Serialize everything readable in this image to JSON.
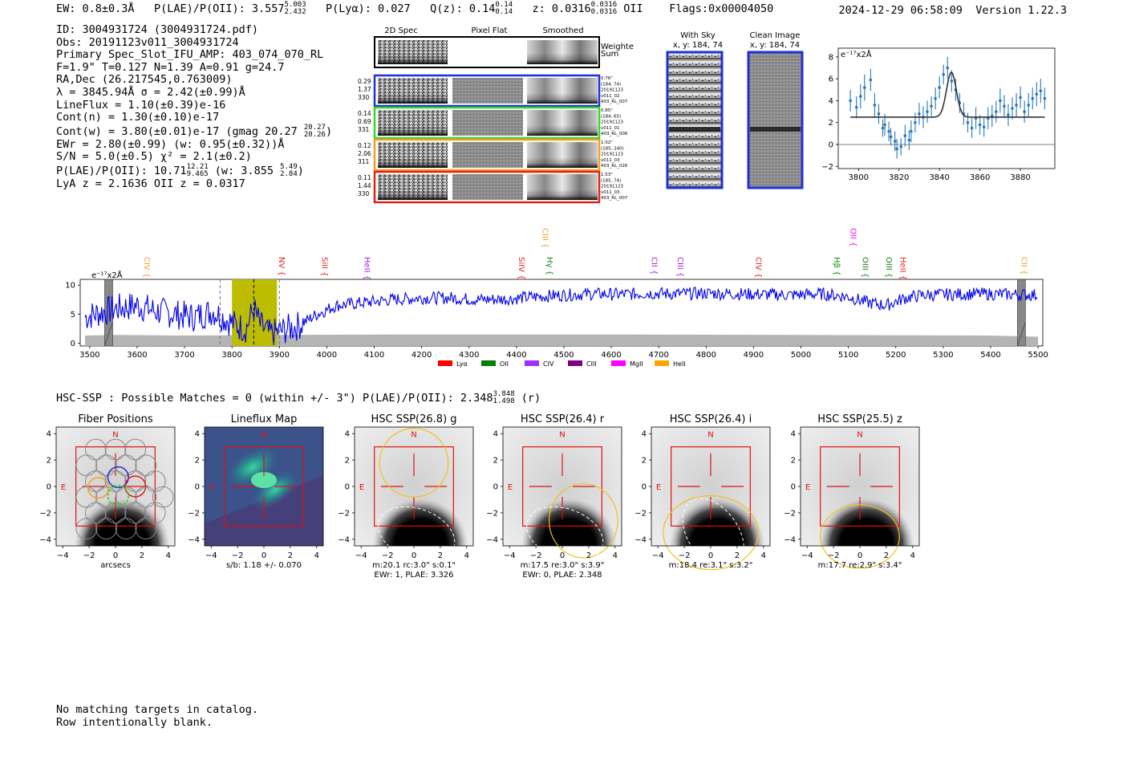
{
  "header": {
    "ew": "EW: 0.8±0.3Å",
    "plae_label": "P(LAE)/P(OII):",
    "plae_value": "3.557",
    "plae_hi": "5.003",
    "plae_lo": "2.432",
    "plya": "P(Lyα): 0.027",
    "qz_label": "Q(z):",
    "qz_value": "0.14",
    "qz_hi": "0.14",
    "qz_lo": "0.14",
    "z_label": "z:",
    "z_value": "0.0316",
    "z_hi": "0.0316",
    "z_lo": "0.0316",
    "z_line": "OII",
    "flags": "Flags:0x00004050",
    "timestamp": "2024-12-29 06:58:09",
    "version": "Version 1.22.3"
  },
  "info": {
    "id": "ID: 3004931724 (3004931724.pdf)",
    "obs": "Obs: 20191123v011_3004931724",
    "primary": "Primary Spec_Slot_IFU_AMP: 403_074_070_RL",
    "fit": "F=1.9\"  T=0.127  N=1.39  A=0.91  g=24.7",
    "radec": "RA,Dec (26.217545,0.763009)",
    "lambda": "λ = 3845.94Å  σ = 2.42(±0.99)Å",
    "lineflux": "LineFlux = 1.10(±0.39)e-16",
    "contn": "Cont(n) = 1.30(±0.10)e-17",
    "contw": "Cont(w) = 3.80(±0.01)e-17 (gmag 20.27",
    "contw_hi": "20.27",
    "contw_lo": "20.26",
    "contw_end": ")",
    "ewr": "EWr = 2.80(±0.99) (w: 0.95(±0.32))Å",
    "sn": "S/N = 5.0(±0.5)  χ² = 2.1(±0.2)",
    "plae": "P(LAE)/P(OII): 10.71",
    "plae_hi": "12.21",
    "plae_lo": "9.465",
    "plae_w": "(w: 3.855",
    "plae_w_hi": "5.49",
    "plae_w_lo": "2.84",
    "plae_w_end": ")",
    "redshifts": "LyA z = 2.1636  OII z = 0.0317"
  },
  "cutouts": {
    "col_2d": "2D Spec",
    "col_flat": "Pixel Flat",
    "col_smooth": "Smoothed",
    "weighted": "Weighted",
    "sum": "Sum",
    "rows": [
      {
        "color": "#1f2fd6",
        "left": [
          "0.29",
          "1.37",
          "330"
        ],
        "right": [
          "0.76\"",
          "(184, 74)",
          "20191123",
          "v011_02",
          "403_RL_007"
        ]
      },
      {
        "color": "#35d62a",
        "left": [
          "0.14",
          "0.69",
          "331"
        ],
        "right": [
          "0.85\"",
          "(184, 65)",
          "20191123",
          "v011_01",
          "403_RL_006"
        ]
      },
      {
        "color": "#f0a020",
        "left": [
          "0.12",
          "2.06",
          "311"
        ],
        "right": [
          "1.02\"",
          "(185, 240)",
          "20191123",
          "v011_03",
          "403_RL_026"
        ]
      },
      {
        "color": "#e0201a",
        "left": [
          "0.11",
          "1.44",
          "330"
        ],
        "right": [
          "1.53\"",
          "(185, 74)",
          "20191123",
          "v011_03",
          "403_RL_007"
        ]
      }
    ],
    "with_sky": "With Sky",
    "with_sky_xy": "x, y: 184, 74",
    "clean": "Clean Image",
    "clean_xy": "x, y: 184, 74"
  },
  "zoom_plot": {
    "unit": "e⁻¹⁷x2Å",
    "x_ticks": [
      "3800",
      "3820",
      "3840",
      "3860",
      "3880"
    ],
    "y_ticks": [
      "8",
      "6",
      "4",
      "2",
      "0",
      "−2"
    ]
  },
  "chart_data": {
    "type": "line",
    "title": "",
    "ylabel": "e⁻¹⁷x2Å",
    "xlim": [
      3480,
      5510
    ],
    "ylim": [
      -0.5,
      11
    ],
    "x_ticks": [
      3500,
      3600,
      3700,
      3800,
      3900,
      4000,
      4100,
      4200,
      4300,
      4400,
      4500,
      4600,
      4700,
      4800,
      4900,
      5000,
      5100,
      5200,
      5300,
      5400,
      5500
    ],
    "y_ticks": [
      0,
      5,
      10
    ],
    "series": [
      {
        "name": "spectrum",
        "color": "#0000ee",
        "x": [
          3490,
          3520,
          3560,
          3600,
          3640,
          3680,
          3720,
          3760,
          3790,
          3810,
          3830,
          3846,
          3860,
          3880,
          3900,
          3940,
          3980,
          4020,
          4080,
          4140,
          4200,
          4260,
          4320,
          4380,
          4440,
          4500,
          4560,
          4620,
          4680,
          4740,
          4800,
          4860,
          4920,
          4980,
          5040,
          5100,
          5140,
          5180,
          5220,
          5260,
          5320,
          5380,
          5440,
          5500
        ],
        "y": [
          4.5,
          5.2,
          6.0,
          6.5,
          5.5,
          5.0,
          4.5,
          5.5,
          4.0,
          3.0,
          2.5,
          6.0,
          3.0,
          1.5,
          2.0,
          3.0,
          5.0,
          6.5,
          7.0,
          7.5,
          7.8,
          7.8,
          7.5,
          7.6,
          8.0,
          8.3,
          8.5,
          8.4,
          8.6,
          8.5,
          8.6,
          8.5,
          8.4,
          8.3,
          8.5,
          8.0,
          7.0,
          6.5,
          7.8,
          8.3,
          8.4,
          8.5,
          8.4,
          8.3
        ]
      },
      {
        "name": "noise",
        "color": "#b4b4b4",
        "x": [
          3490,
          3550,
          3700,
          3900,
          4200,
          4600,
          5000,
          5400,
          5500
        ],
        "y": [
          1.3,
          1.4,
          1.3,
          1.4,
          1.5,
          1.5,
          1.4,
          1.3,
          1.1
        ]
      }
    ],
    "lines": [
      {
        "label": "CIV",
        "wave": 3620,
        "color": "#f0a020",
        "level": 1
      },
      {
        "label": "NV",
        "wave": 3905,
        "color": "#e0201a",
        "level": 1
      },
      {
        "label": "SiII",
        "wave": 3995,
        "color": "#e0201a",
        "level": 1
      },
      {
        "label": "HeII",
        "wave": 4085,
        "color": "#a020e0",
        "level": 1
      },
      {
        "label": "SiIV",
        "wave": 4410,
        "color": "#e0201a",
        "level": 1
      },
      {
        "label": "Hγ",
        "wave": 4470,
        "color": "#108010",
        "level": 1
      },
      {
        "label": "CIII",
        "wave": 4460,
        "color": "#f0a020",
        "level": 0
      },
      {
        "label": "CII",
        "wave": 4690,
        "color": "#a020e0",
        "level": 1
      },
      {
        "label": "CIII",
        "wave": 4745,
        "color": "#a020e0",
        "level": 1
      },
      {
        "label": "CIV",
        "wave": 4910,
        "color": "#e0201a",
        "level": 1
      },
      {
        "label": "Hβ",
        "wave": 5075,
        "color": "#108010",
        "level": 1
      },
      {
        "label": "OIII",
        "wave": 5135,
        "color": "#108010",
        "level": 1
      },
      {
        "label": "OII",
        "wave": 5110,
        "color": "#ff00ff",
        "level": 0
      },
      {
        "label": "OIII",
        "wave": 5185,
        "color": "#108010",
        "level": 1
      },
      {
        "label": "HeII",
        "wave": 5215,
        "color": "#e0201a",
        "level": 1
      },
      {
        "label": "CII",
        "wave": 5470,
        "color": "#f0a020",
        "level": 1
      }
    ],
    "highlight": [
      3800,
      3895
    ],
    "dashed": [
      3775,
      3846,
      3900
    ],
    "masks": [
      3540,
      5465
    ],
    "legend": [
      {
        "label": "Lyα",
        "color": "#ff0000"
      },
      {
        "label": "OII",
        "color": "#008000"
      },
      {
        "label": "CIV",
        "color": "#9b30ff"
      },
      {
        "label": "CIII",
        "color": "#800080"
      },
      {
        "label": "MgII",
        "color": "#ff00ff"
      },
      {
        "label": "HeII",
        "color": "#ffa500"
      }
    ]
  },
  "hsc": {
    "header": "HSC-SSP : Possible Matches = 0 (within +/- 3\")  P(LAE)/P(OII): 2.348",
    "header_hi": "3.848",
    "header_lo": "1.498",
    "header_end": "(r)",
    "panels": [
      {
        "title": "Fiber Positions",
        "caption1": "arcsecs",
        "caption2": ""
      },
      {
        "title": "Lineflux Map",
        "caption1": "s/b: 1.18 +/- 0.070",
        "caption2": ""
      },
      {
        "title": "HSC SSP(26.8) g",
        "caption1": "m:20.1 rc:3.0\"  s:0.1\"",
        "caption2": "EWr: 1, PLAE: 3.326"
      },
      {
        "title": "HSC SSP(26.4) r",
        "caption1": "m:17.5  re:3.0\"  s:3.9\"",
        "caption2": "EWr: 0, PLAE: 2.348"
      },
      {
        "title": "HSC SSP(26.4) i",
        "caption1": "m:18.4  re:3.1\"  s:3.2\"",
        "caption2": ""
      },
      {
        "title": "HSC SSP(25.5) z",
        "caption1": "m:17.7  re:2.9\"  s:3.4\"",
        "caption2": ""
      }
    ],
    "axis_ticks": [
      "−4",
      "−2",
      "0",
      "2",
      "4"
    ],
    "north": "N",
    "east": "E"
  },
  "footer": {
    "line1": "No matching targets in catalog.",
    "line2": "Row intentionally blank."
  }
}
